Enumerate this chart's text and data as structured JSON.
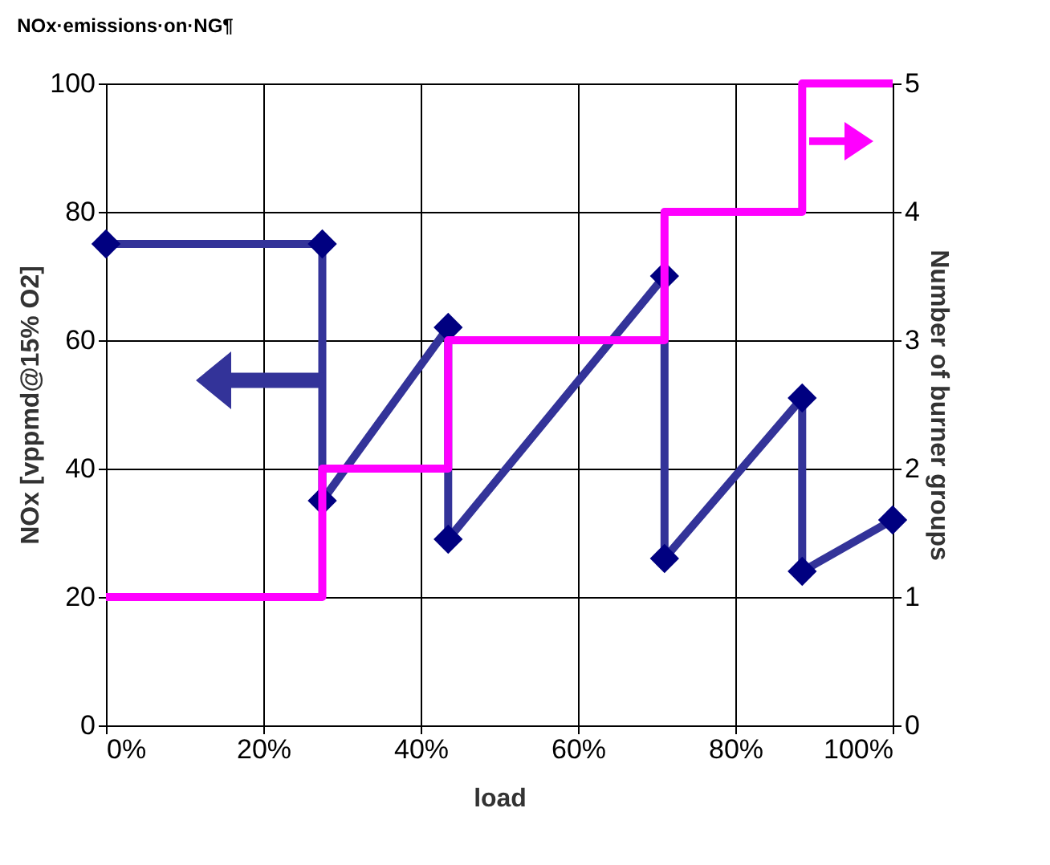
{
  "chart_data": {
    "type": "line",
    "title": "NOx·emissions·on·NG¶",
    "xlabel": "load",
    "ylabel": "NOx [vppmd@15% O2]",
    "y2label": "Number of burner groups",
    "series": [
      {
        "type": "line",
        "color": "#333399",
        "marker": "diamond",
        "x": [
          0,
          27.5,
          27.5,
          43.5,
          43.5,
          71,
          71,
          88.5,
          88.5,
          100
        ],
        "values": [
          75,
          75,
          35,
          62,
          29,
          70,
          26,
          51,
          24,
          32
        ]
      },
      {
        "type": "step",
        "color": "#ff00ff",
        "axis": "y2",
        "marker": "none",
        "x": [
          0,
          27.5,
          43.5,
          71,
          88.5,
          100
        ],
        "values": [
          1,
          2,
          3,
          4,
          5,
          5
        ]
      }
    ],
    "xlim": [
      0,
      100
    ],
    "xticks": [
      {
        "value": 0,
        "label": "0%"
      },
      {
        "value": 20,
        "label": "20%"
      },
      {
        "value": 40,
        "label": "40%"
      },
      {
        "value": 60,
        "label": "60%"
      },
      {
        "value": 80,
        "label": "80%"
      },
      {
        "value": 100,
        "label": "100%"
      }
    ],
    "ylim": [
      0,
      100
    ],
    "yticks": [
      0,
      20,
      40,
      60,
      80,
      100
    ],
    "y2lim": [
      0,
      5
    ],
    "y2ticks": [
      0,
      1,
      2,
      3,
      4,
      5
    ],
    "grid": true
  }
}
